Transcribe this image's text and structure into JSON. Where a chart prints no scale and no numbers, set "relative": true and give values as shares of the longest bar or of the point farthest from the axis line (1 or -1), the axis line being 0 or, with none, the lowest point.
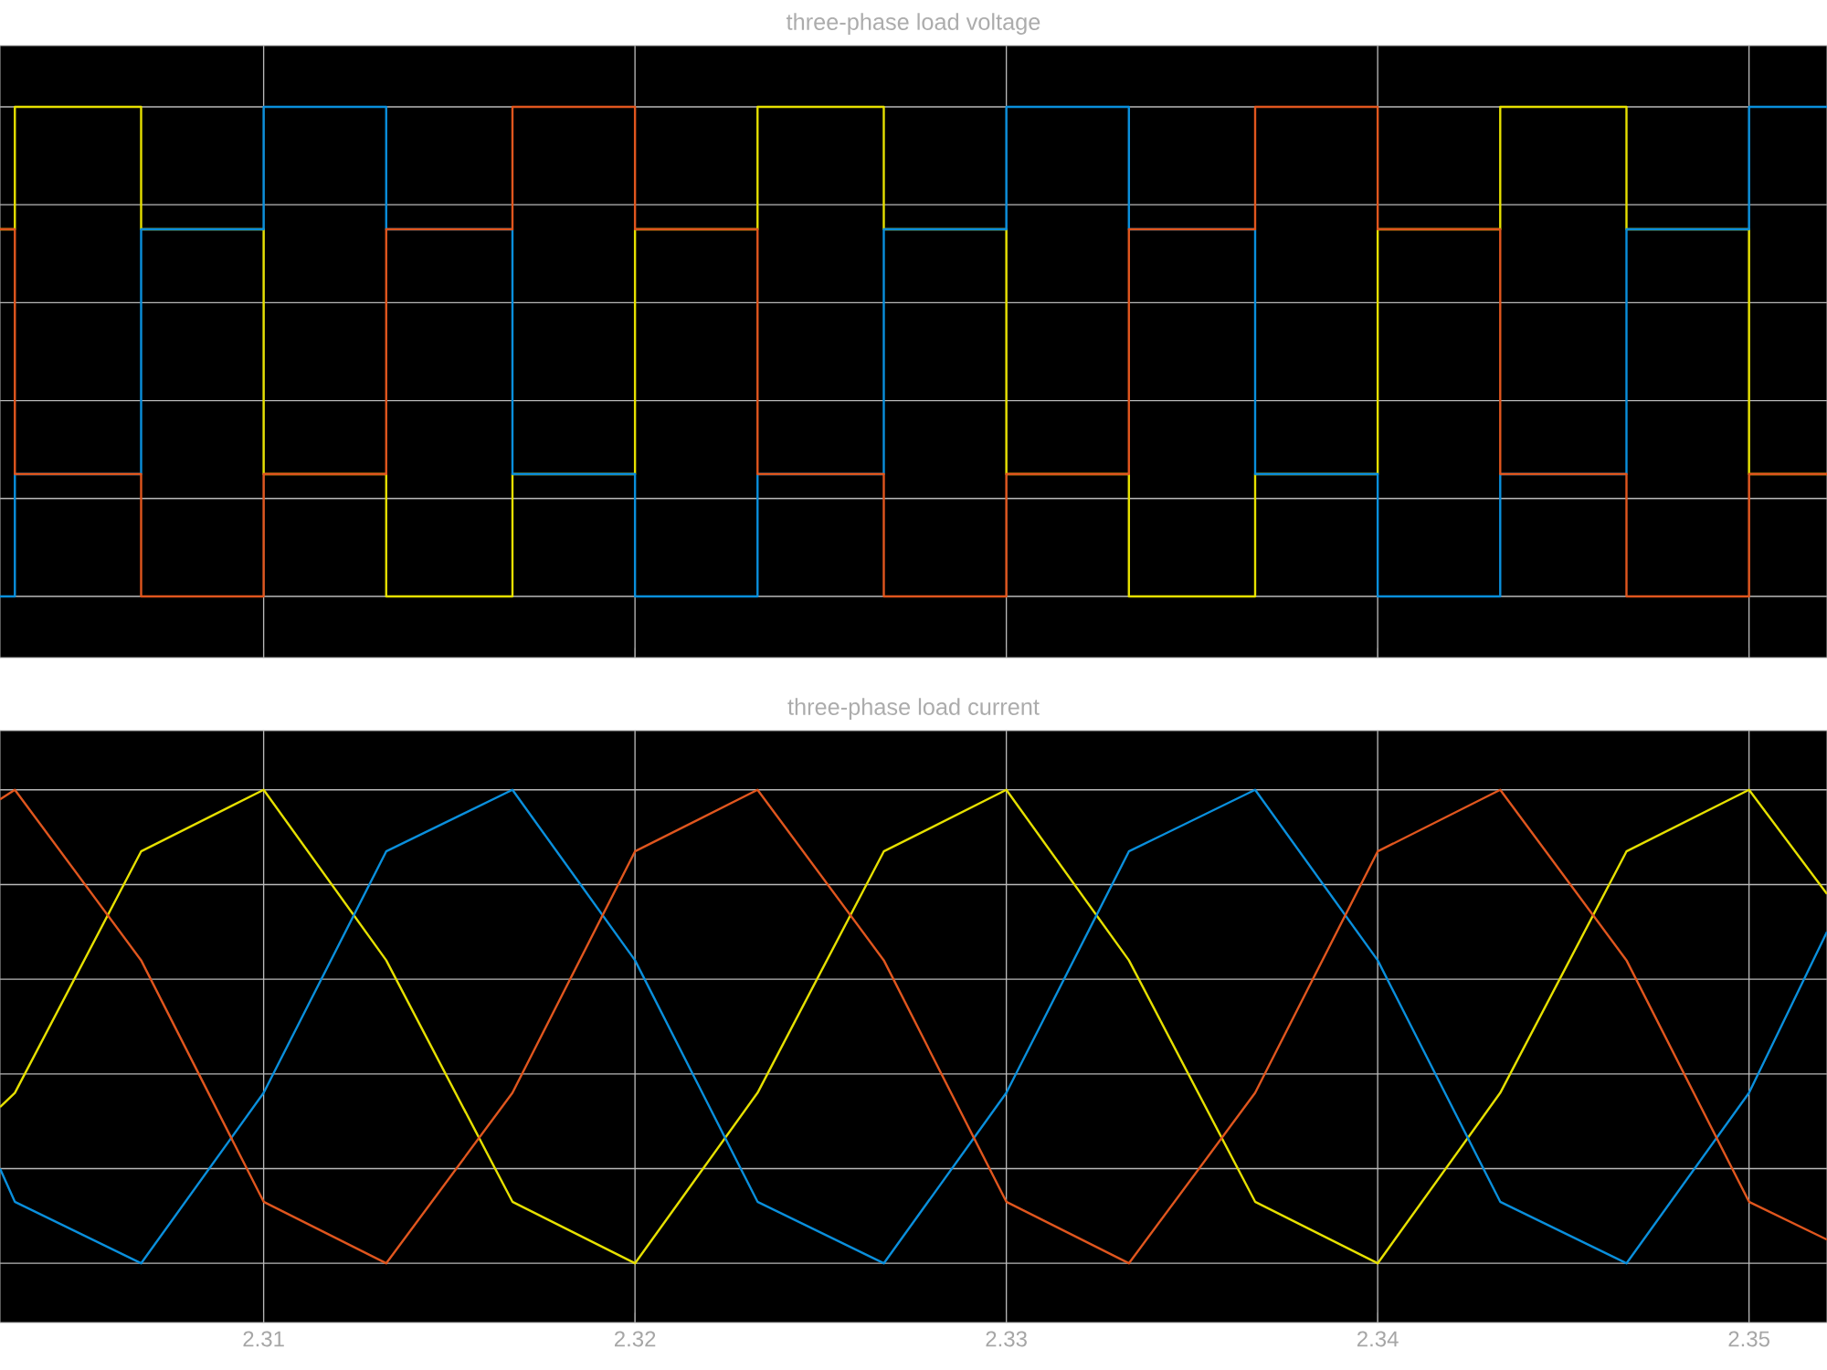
{
  "chart_data": [
    {
      "type": "step",
      "title": "three-phase load voltage",
      "relative": true,
      "grid": true,
      "tick_labels": false,
      "xlim": [
        2.3029,
        2.3521
      ],
      "xticks": [
        2.31,
        2.32,
        2.33,
        2.34,
        2.35
      ],
      "x": [
        2.3029,
        2.3033,
        2.3067,
        2.31,
        2.3133,
        2.3167,
        2.32,
        2.3233,
        2.3267,
        2.33,
        2.3333,
        2.3367,
        2.34,
        2.3433,
        2.3467,
        2.35,
        2.3521
      ],
      "series": [
        {
          "color": "#e6e000",
          "values": [
            0.75,
            1,
            0.75,
            0.25,
            0,
            0.25,
            0.75,
            1,
            0.75,
            0.25,
            0,
            0.25,
            0.75,
            1,
            0.75,
            0.25,
            0.25
          ]
        },
        {
          "color": "#0a8fdc",
          "values": [
            0,
            0.25,
            0.75,
            1,
            0.75,
            0.25,
            0,
            0.25,
            0.75,
            1,
            0.75,
            0.25,
            0,
            0.25,
            0.75,
            1,
            1
          ]
        },
        {
          "color": "#e0561e",
          "values": [
            0.75,
            0.25,
            0,
            0.25,
            0.75,
            1,
            0.75,
            0.25,
            0,
            0.25,
            0.75,
            1,
            0.75,
            0.25,
            0,
            0.25,
            0.25
          ]
        }
      ]
    },
    {
      "type": "line",
      "title": "three-phase load current",
      "relative": true,
      "grid": true,
      "tick_labels": "x",
      "xlim": [
        2.3029,
        2.3521
      ],
      "xticks": [
        2.31,
        2.32,
        2.33,
        2.34,
        2.35
      ],
      "x": [
        2.3029,
        2.3033,
        2.3067,
        2.31,
        2.3133,
        2.3167,
        2.32,
        2.3233,
        2.3267,
        2.33,
        2.3333,
        2.3367,
        2.34,
        2.3433,
        2.3467,
        2.35,
        2.3521
      ],
      "series": [
        {
          "color": "#e6e000",
          "values": [
            0.33,
            0.36,
            0.87,
            1,
            0.64,
            0.13,
            0,
            0.36,
            0.87,
            1,
            0.64,
            0.13,
            0,
            0.36,
            0.87,
            1,
            0.78
          ]
        },
        {
          "color": "#0a8fdc",
          "values": [
            0.2,
            0.13,
            0,
            0.36,
            0.87,
            1,
            0.64,
            0.13,
            0,
            0.36,
            0.87,
            1,
            0.64,
            0.13,
            0,
            0.36,
            0.7
          ]
        },
        {
          "color": "#e0561e",
          "values": [
            0.98,
            1,
            0.64,
            0.13,
            0,
            0.36,
            0.87,
            1,
            0.64,
            0.13,
            0,
            0.36,
            0.87,
            1,
            0.64,
            0.13,
            0.05
          ]
        }
      ]
    }
  ]
}
